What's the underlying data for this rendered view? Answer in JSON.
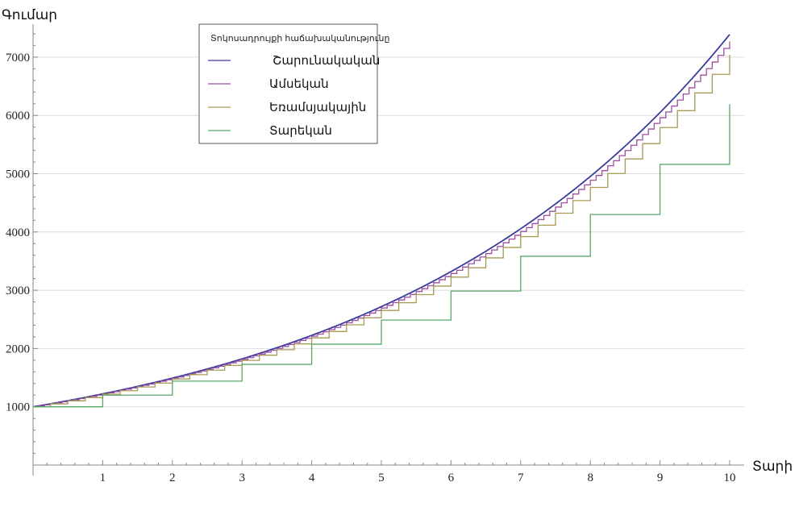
{
  "chart_data": {
    "type": "line",
    "title": "",
    "ylabel": "Գումար",
    "xlabel": "Տարի",
    "xlim": [
      0,
      10.2
    ],
    "ylim": [
      0,
      7600
    ],
    "x_ticks": [
      1,
      2,
      3,
      4,
      5,
      6,
      7,
      8,
      9,
      10
    ],
    "y_ticks": [
      1000,
      2000,
      3000,
      4000,
      5000,
      6000,
      7000
    ],
    "grid": true,
    "legend_title": "Տոկոսադրույքի հաճախականությունը",
    "legend_position": "top-center",
    "principal": 1000,
    "annual_rate": 0.2,
    "series": [
      {
        "name": "Շարունակական",
        "color": "#3b3b9e",
        "periods_per_year": 0
      },
      {
        "name": "Ամսեկան",
        "color": "#9a4fa0",
        "periods_per_year": 12
      },
      {
        "name": "Եռամսյակային",
        "color": "#a89a52",
        "periods_per_year": 4
      },
      {
        "name": "Տարեկան",
        "color": "#58a86a",
        "periods_per_year": 1
      }
    ]
  }
}
